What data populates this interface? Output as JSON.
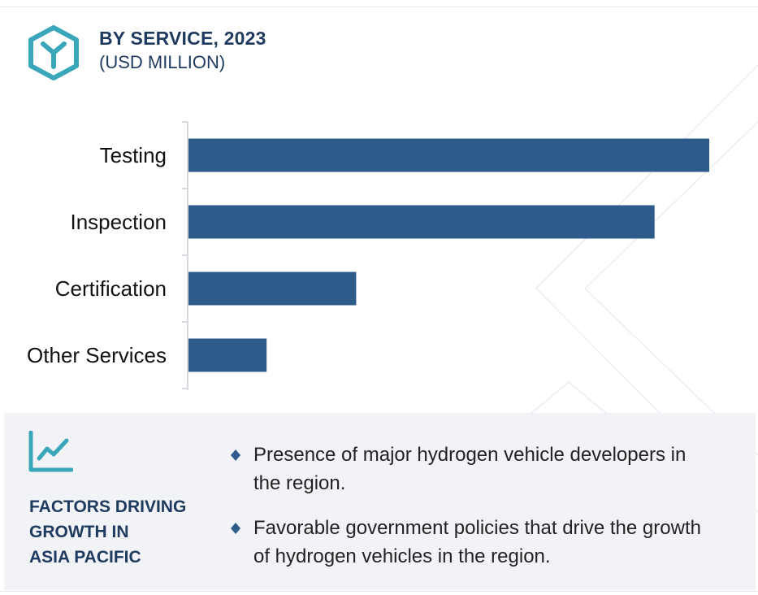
{
  "header": {
    "icon": "hexagon-y-logo-icon",
    "title": "BY SERVICE, 2023",
    "subtitle": "(USD MILLION)"
  },
  "colors": {
    "bar": "#2e5b8a",
    "accent": "#3aa6b9",
    "title": "#1f3a5f",
    "panel_bg": "#f1f3f7"
  },
  "chart_data": {
    "type": "bar",
    "orientation": "horizontal",
    "title": "BY SERVICE, 2023",
    "subtitle": "(USD MILLION)",
    "categories": [
      "Testing",
      "Inspection",
      "Certification",
      "Other Services"
    ],
    "values": [
      100,
      89.5,
      32.2,
      15
    ],
    "xlabel": "",
    "ylabel": "",
    "xlim": [
      0,
      100
    ],
    "grid": false,
    "legend": "none"
  },
  "factors": {
    "icon": "trend-line-icon",
    "heading_lines": [
      "FACTORS DRIVING",
      "GROWTH IN",
      "ASIA PACIFIC"
    ],
    "bullet_icon": "diamond-bullet-icon",
    "items": [
      {
        "line1": "Presence of major hydrogen vehicle developers in",
        "line2": "the region."
      },
      {
        "line1": "Favorable government policies that drive the growth",
        "line2": "of hydrogen vehicles in the region."
      }
    ]
  }
}
